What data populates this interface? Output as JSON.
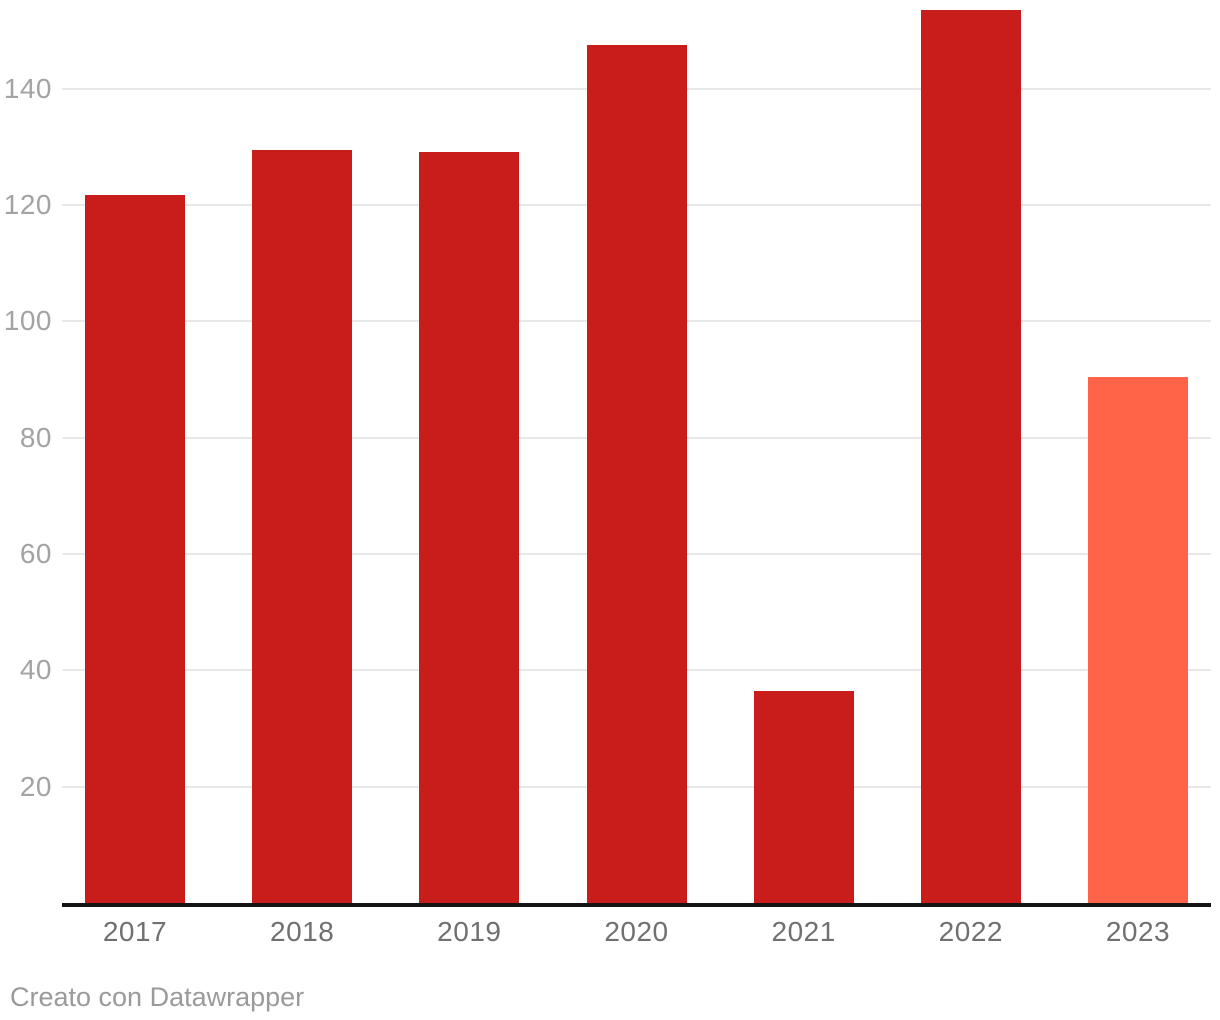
{
  "chart_data": {
    "type": "bar",
    "categories": [
      "2017",
      "2018",
      "2019",
      "2020",
      "2021",
      "2022",
      "2023"
    ],
    "values": [
      121.8,
      129.5,
      129.1,
      147.5,
      36.5,
      153.5,
      90.5
    ],
    "series_name": "",
    "title": "",
    "xlabel": "",
    "ylabel": "",
    "ylim": [
      0,
      155.3
    ],
    "yticks": [
      20,
      40,
      60,
      80,
      100,
      120,
      140
    ],
    "grid": true,
    "legend": false,
    "bar_color_default": "#c91d1c",
    "bar_color_highlight": "#ff6348",
    "highlight_category": "2023",
    "gridline_color": "#e8e8e8",
    "axis_line_color": "#141414",
    "y_tick_label_color": "#a3a3a3",
    "x_tick_label_color": "#707070"
  },
  "footer": {
    "credit": "Creato con Datawrapper"
  }
}
